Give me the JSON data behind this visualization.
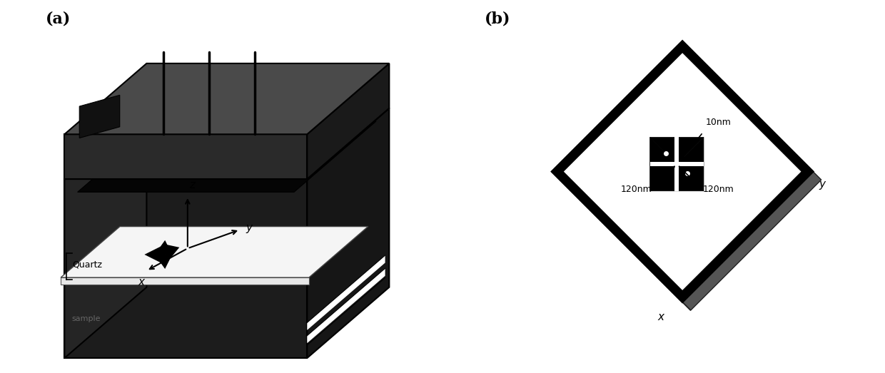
{
  "panel_a_label": "(a)",
  "panel_b_label": "(b)",
  "label_fontsize": 16,
  "background_color": "#ffffff",
  "quartz_label": "Quartz",
  "x_label": "x",
  "y_label": "y",
  "z_label": "z",
  "dim_10nm": "10nm",
  "dim_120nm_left": "120nm",
  "dim_120nm_right": "120nm",
  "sample_label": "sample"
}
